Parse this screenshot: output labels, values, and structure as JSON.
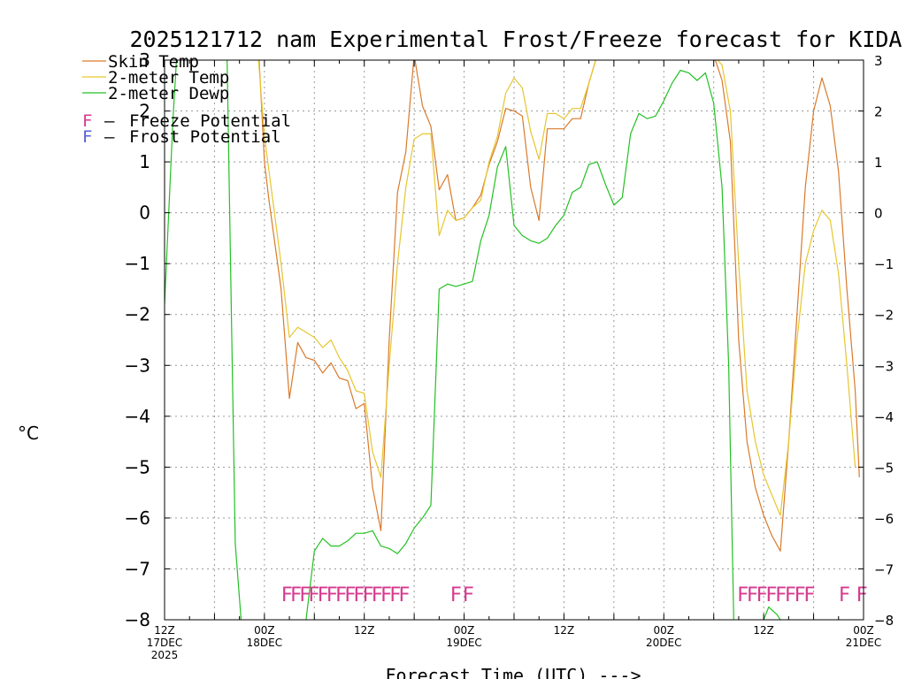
{
  "chart_data": {
    "type": "line",
    "title": "2025121712 nam Experimental Frost/Freeze forecast for KIDA",
    "xlabel": "Forecast Time (UTC) --->",
    "ylabel": "°C",
    "x_unit": "hours since 12Z 17DEC 2025",
    "xlim": [
      0,
      84
    ],
    "ylim": [
      -8,
      3
    ],
    "y_ticks": [
      {
        "value": 3,
        "label": "3"
      },
      {
        "value": 2,
        "label": "2"
      },
      {
        "value": 1,
        "label": "1"
      },
      {
        "value": 0,
        "label": "0"
      },
      {
        "value": -1,
        "label": "−1"
      },
      {
        "value": -2,
        "label": "−2"
      },
      {
        "value": -3,
        "label": "−3"
      },
      {
        "value": -4,
        "label": "−4"
      },
      {
        "value": -5,
        "label": "−5"
      },
      {
        "value": -6,
        "label": "−6"
      },
      {
        "value": -7,
        "label": "−7"
      },
      {
        "value": -8,
        "label": "−8"
      }
    ],
    "x_ticks": [
      {
        "hour": 0,
        "label": "12Z",
        "date": "17DEC",
        "year": "2025"
      },
      {
        "hour": 12,
        "label": "00Z",
        "date": "18DEC",
        "year": ""
      },
      {
        "hour": 24,
        "label": "12Z",
        "date": "",
        "year": ""
      },
      {
        "hour": 36,
        "label": "00Z",
        "date": "19DEC",
        "year": ""
      },
      {
        "hour": 48,
        "label": "12Z",
        "date": "",
        "year": ""
      },
      {
        "hour": 60,
        "label": "00Z",
        "date": "20DEC",
        "year": ""
      },
      {
        "hour": 72,
        "label": "12Z",
        "date": "",
        "year": ""
      },
      {
        "hour": 84,
        "label": "00Z",
        "date": "21DEC",
        "year": ""
      }
    ],
    "grid": true,
    "series": [
      {
        "name": "Skin Temp",
        "color": "#d97a2b",
        "points": [
          [
            11.3,
            3.2
          ],
          [
            12,
            1.0
          ],
          [
            12.5,
            0.3
          ],
          [
            14,
            -1.5
          ],
          [
            15,
            -3.65
          ],
          [
            16,
            -2.55
          ],
          [
            17,
            -2.85
          ],
          [
            18,
            -2.9
          ],
          [
            19,
            -3.15
          ],
          [
            20,
            -2.95
          ],
          [
            21,
            -3.25
          ],
          [
            22,
            -3.3
          ],
          [
            23,
            -3.85
          ],
          [
            24,
            -3.75
          ],
          [
            25,
            -5.4
          ],
          [
            26,
            -6.25
          ],
          [
            27,
            -2.5
          ],
          [
            28,
            0.4
          ],
          [
            29,
            1.2
          ],
          [
            30,
            3.1
          ],
          [
            31,
            2.1
          ],
          [
            32,
            1.7
          ],
          [
            33,
            0.45
          ],
          [
            34,
            0.75
          ],
          [
            35,
            -0.15
          ],
          [
            36,
            -0.1
          ],
          [
            37,
            0.1
          ],
          [
            38,
            0.35
          ],
          [
            39,
            0.95
          ],
          [
            40,
            1.4
          ],
          [
            41,
            2.05
          ],
          [
            42,
            2.0
          ],
          [
            43,
            1.9
          ],
          [
            44,
            0.5
          ],
          [
            45,
            -0.15
          ],
          [
            46,
            1.65
          ],
          [
            47,
            1.65
          ],
          [
            48,
            1.65
          ],
          [
            49,
            1.85
          ],
          [
            50,
            1.85
          ],
          [
            51,
            2.55
          ],
          [
            52,
            3.1
          ],
          [
            66,
            3.1
          ],
          [
            67,
            2.6
          ],
          [
            68,
            1.4
          ],
          [
            69,
            -2.5
          ],
          [
            70,
            -4.5
          ],
          [
            71,
            -5.4
          ],
          [
            72,
            -5.95
          ],
          [
            73,
            -6.35
          ],
          [
            74,
            -6.65
          ],
          [
            75,
            -4.5
          ],
          [
            76,
            -2.0
          ],
          [
            77,
            0.5
          ],
          [
            78,
            2.0
          ],
          [
            79,
            2.65
          ],
          [
            80,
            2.1
          ],
          [
            81,
            0.8
          ],
          [
            82,
            -1.5
          ],
          [
            83,
            -3.5
          ],
          [
            83.5,
            -5.2
          ]
        ]
      },
      {
        "name": "2-meter Temp",
        "color": "#e6c62e",
        "points": [
          [
            11.2,
            3.2
          ],
          [
            12,
            1.5
          ],
          [
            14,
            -1.0
          ],
          [
            15,
            -2.45
          ],
          [
            16,
            -2.25
          ],
          [
            17,
            -2.35
          ],
          [
            18,
            -2.45
          ],
          [
            19,
            -2.65
          ],
          [
            20,
            -2.5
          ],
          [
            21,
            -2.85
          ],
          [
            22,
            -3.1
          ],
          [
            23,
            -3.5
          ],
          [
            24,
            -3.55
          ],
          [
            25,
            -4.7
          ],
          [
            26,
            -5.2
          ],
          [
            27,
            -3.0
          ],
          [
            28,
            -1.0
          ],
          [
            29,
            0.5
          ],
          [
            30,
            1.45
          ],
          [
            31,
            1.55
          ],
          [
            32,
            1.55
          ],
          [
            33,
            -0.45
          ],
          [
            34,
            0.05
          ],
          [
            35,
            -0.15
          ],
          [
            36,
            -0.1
          ],
          [
            37,
            0.1
          ],
          [
            38,
            0.25
          ],
          [
            39,
            1.0
          ],
          [
            40,
            1.5
          ],
          [
            41,
            2.35
          ],
          [
            42,
            2.65
          ],
          [
            43,
            2.45
          ],
          [
            44,
            1.6
          ],
          [
            45,
            1.05
          ],
          [
            46,
            1.95
          ],
          [
            47,
            1.95
          ],
          [
            48,
            1.85
          ],
          [
            49,
            2.05
          ],
          [
            50,
            2.05
          ],
          [
            51,
            2.55
          ],
          [
            52,
            3.1
          ],
          [
            66,
            3.1
          ],
          [
            67,
            2.9
          ],
          [
            68,
            2.0
          ],
          [
            69,
            -1.0
          ],
          [
            70,
            -3.5
          ],
          [
            71,
            -4.5
          ],
          [
            72,
            -5.15
          ],
          [
            73,
            -5.55
          ],
          [
            74,
            -5.95
          ],
          [
            75,
            -4.5
          ],
          [
            76,
            -2.5
          ],
          [
            77,
            -1.0
          ],
          [
            78,
            -0.35
          ],
          [
            79,
            0.05
          ],
          [
            80,
            -0.15
          ],
          [
            81,
            -1.2
          ],
          [
            82,
            -3.0
          ],
          [
            83,
            -5.0
          ]
        ]
      },
      {
        "name": "2-meter Dewp",
        "color": "#24c024",
        "points": [
          [
            0,
            -1.8
          ],
          [
            1,
            1.8
          ],
          [
            1.5,
            3.2
          ]
        ]
      },
      {
        "name": "2-meter Dewp",
        "color": "#24c024",
        "points": [
          [
            7.5,
            3.2
          ],
          [
            8.5,
            -6.5
          ],
          [
            9.2,
            -8.0
          ]
        ]
      },
      {
        "name": "2-meter Dewp",
        "color": "#24c024",
        "points": [
          [
            17,
            -8.0
          ],
          [
            18,
            -6.65
          ],
          [
            19,
            -6.4
          ],
          [
            20,
            -6.55
          ],
          [
            21,
            -6.55
          ],
          [
            22,
            -6.45
          ],
          [
            23,
            -6.3
          ],
          [
            24,
            -6.3
          ],
          [
            25,
            -6.25
          ],
          [
            26,
            -6.55
          ],
          [
            27,
            -6.6
          ],
          [
            28,
            -6.7
          ],
          [
            29,
            -6.5
          ],
          [
            30,
            -6.2
          ],
          [
            31,
            -6.0
          ],
          [
            32,
            -5.75
          ],
          [
            33,
            -1.5
          ],
          [
            34,
            -1.4
          ],
          [
            35,
            -1.45
          ],
          [
            36,
            -1.4
          ],
          [
            37,
            -1.35
          ],
          [
            38,
            -0.55
          ],
          [
            39,
            -0.05
          ],
          [
            40,
            0.9
          ],
          [
            41,
            1.3
          ],
          [
            42,
            -0.25
          ],
          [
            43,
            -0.45
          ],
          [
            44,
            -0.55
          ],
          [
            45,
            -0.6
          ],
          [
            46,
            -0.5
          ],
          [
            47,
            -0.25
          ],
          [
            48,
            -0.05
          ],
          [
            49,
            0.4
          ],
          [
            50,
            0.5
          ],
          [
            51,
            0.95
          ],
          [
            52,
            1.0
          ],
          [
            53,
            0.55
          ],
          [
            54,
            0.15
          ],
          [
            55,
            0.3
          ],
          [
            56,
            1.55
          ],
          [
            57,
            1.95
          ],
          [
            58,
            1.85
          ],
          [
            59,
            1.9
          ],
          [
            60,
            2.2
          ],
          [
            61,
            2.55
          ],
          [
            62,
            2.8
          ],
          [
            63,
            2.75
          ],
          [
            64,
            2.6
          ],
          [
            65,
            2.75
          ],
          [
            66,
            2.15
          ],
          [
            67,
            0.5
          ],
          [
            67.8,
            -3.0
          ],
          [
            68.4,
            -8.0
          ]
        ]
      },
      {
        "name": "2-meter Dewp",
        "color": "#24c024",
        "points": [
          [
            72,
            -8.0
          ],
          [
            72.6,
            -7.75
          ],
          [
            73.6,
            -7.9
          ],
          [
            74,
            -8.0
          ]
        ]
      }
    ],
    "legend": [
      {
        "label": "Skin Temp",
        "color": "#d97a2b"
      },
      {
        "label": "2-meter Temp",
        "color": "#e6c62e"
      },
      {
        "label": "2-meter Dewp",
        "color": "#24c024"
      }
    ],
    "markers": [
      {
        "letter": "F",
        "label": "Freeze Potential",
        "color": "#d63a8f"
      },
      {
        "letter": "F",
        "label": "Frost Potential",
        "color": "#5460d6"
      }
    ],
    "freeze_runs": [
      {
        "start": 14.7,
        "end": 28.8,
        "count": 14
      },
      {
        "start": 35.0,
        "end": 36.5,
        "count": 2
      },
      {
        "start": 69.5,
        "end": 77.5,
        "count": 8
      },
      {
        "start": 81.7,
        "end": 83.8,
        "count": 2
      }
    ]
  }
}
